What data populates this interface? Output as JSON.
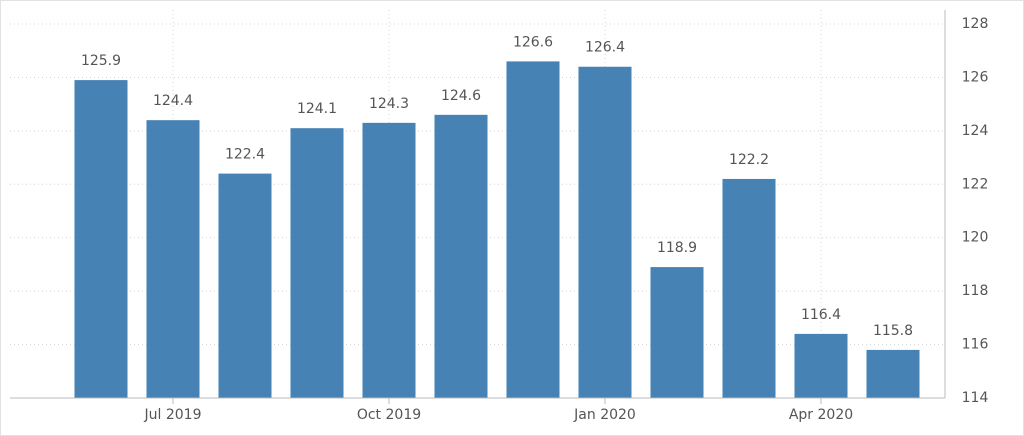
{
  "chart_data": {
    "type": "bar",
    "categories": [
      null,
      "Jul 2019",
      null,
      null,
      "Oct 2019",
      null,
      null,
      "Jan 2020",
      null,
      null,
      "Apr 2020",
      null
    ],
    "values": [
      125.9,
      124.4,
      122.4,
      124.1,
      124.3,
      124.6,
      126.6,
      126.4,
      118.9,
      122.2,
      116.4,
      115.8
    ],
    "color": "#4682b4",
    "ylim": [
      114,
      128
    ],
    "yticks": [
      114,
      116,
      118,
      120,
      122,
      124,
      126,
      128
    ],
    "grid": true
  }
}
